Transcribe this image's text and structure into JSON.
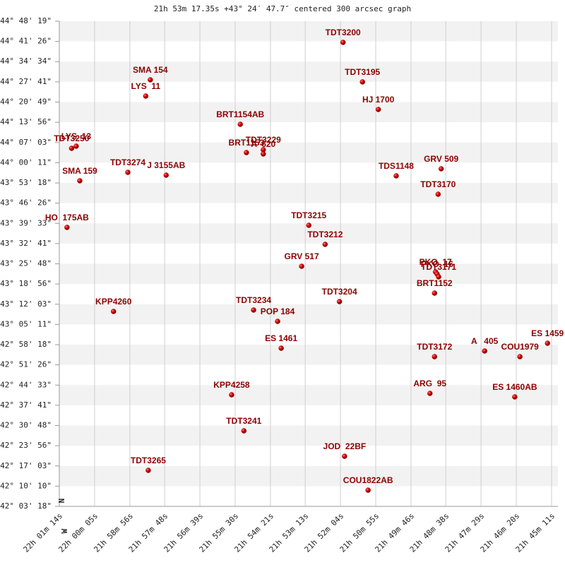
{
  "chart_data": {
    "type": "scatter",
    "title": "21h 53m 17.35s +43° 24′ 47.7″ centered 300 arcsec graph",
    "north_label": "N",
    "west_label": "W",
    "color": "#cc0000",
    "label_color": "#8b0000",
    "grid": true,
    "xlim": [
      79274,
      78311
    ],
    "xticks": [
      {
        "value": 79274,
        "label": "22h 01m 14s"
      },
      {
        "value": 79205,
        "label": "22h 00m 05s"
      },
      {
        "value": 79136,
        "label": "21h 58m 56s"
      },
      {
        "value": 79068,
        "label": "21h 57m 48s"
      },
      {
        "value": 78999,
        "label": "21h 56m 39s"
      },
      {
        "value": 78930,
        "label": "21h 55m 30s"
      },
      {
        "value": 78861,
        "label": "21h 54m 21s"
      },
      {
        "value": 78793,
        "label": "21h 53m 13s"
      },
      {
        "value": 78724,
        "label": "21h 52m 04s"
      },
      {
        "value": 78655,
        "label": "21h 50m 55s"
      },
      {
        "value": 78586,
        "label": "21h 49m 46s"
      },
      {
        "value": 78518,
        "label": "21h 48m 38s"
      },
      {
        "value": 78449,
        "label": "21h 47m 29s"
      },
      {
        "value": 78380,
        "label": "21h 46m 20s"
      },
      {
        "value": 78311,
        "label": "21h 45m 11s"
      }
    ],
    "ylim": [
      151398,
      161299
    ],
    "yticks": [
      {
        "value": 161299,
        "label": "+44° 48' 19\""
      },
      {
        "value": 160886,
        "label": "+44° 41' 26\""
      },
      {
        "value": 160474,
        "label": "+44° 34' 34\""
      },
      {
        "value": 160061,
        "label": "+44° 27' 41\""
      },
      {
        "value": 159649,
        "label": "+44° 20' 49\""
      },
      {
        "value": 159236,
        "label": "+44° 13' 56\""
      },
      {
        "value": 158823,
        "label": "+44° 07' 03\""
      },
      {
        "value": 158411,
        "label": "+44° 00' 11\""
      },
      {
        "value": 157998,
        "label": "+43° 53' 18\""
      },
      {
        "value": 157586,
        "label": "+43° 46' 26\""
      },
      {
        "value": 157173,
        "label": "+43° 39' 33\""
      },
      {
        "value": 156761,
        "label": "+43° 32' 41\""
      },
      {
        "value": 156348,
        "label": "+43° 25' 48\""
      },
      {
        "value": 155936,
        "label": "+43° 18' 56\""
      },
      {
        "value": 155523,
        "label": "+43° 12' 03\""
      },
      {
        "value": 155111,
        "label": "+43° 05' 11\""
      },
      {
        "value": 154698,
        "label": "+42° 58' 18\""
      },
      {
        "value": 154286,
        "label": "+42° 51' 26\""
      },
      {
        "value": 153873,
        "label": "+42° 44' 33\""
      },
      {
        "value": 153461,
        "label": "+42° 37' 41\""
      },
      {
        "value": 153048,
        "label": "+42° 30' 48\""
      },
      {
        "value": 152636,
        "label": "+42° 23' 56\""
      },
      {
        "value": 152223,
        "label": "+42° 17' 03\""
      },
      {
        "value": 151810,
        "label": "+42° 10' 10\""
      },
      {
        "value": 151398,
        "label": "+42° 03' 18\""
      }
    ],
    "point_labels": [
      "TDT3200",
      "SMA 154",
      "TDT3195",
      "LYS  11",
      "HJ 1700",
      "BRT1154AB",
      "LYS  13",
      "TDT3250",
      "BRT1153",
      "TDT3229",
      "A  620",
      "TDT3274",
      "J 3155AB",
      "GRV 509",
      "TDS1148",
      "SMA 159",
      "TDT3170",
      "HO  175AB",
      "TDT3215",
      "TDT3212",
      "GRV 517",
      "PKO  17",
      "PKO  16",
      "TDT3171",
      "BRT1152",
      "TDT3204",
      "KPP4260",
      "TDT3234",
      "POP 184",
      "ES 1461",
      "ES 1459",
      "A   405",
      "COU1979",
      "TDT3172",
      "ARG  95",
      "ES 1460AB",
      "KPP4258",
      "TDT3241",
      "JOD  22BF",
      "TDT3265",
      "COU1822AB"
    ],
    "x": [
      78719,
      79096,
      78681,
      79105,
      78650,
      78920,
      79241,
      79250,
      78908,
      78875,
      78875,
      79140,
      79065,
      78527,
      78615,
      79234,
      78533,
      79259,
      78786,
      78754,
      78800,
      78538,
      78535,
      78532,
      78540,
      78726,
      79168,
      78894,
      78847,
      78840,
      78319,
      78442,
      78373,
      78540,
      78549,
      78383,
      78937,
      78913,
      78716,
      79100,
      78670
    ],
    "values": [
      160867,
      160103,
      160060,
      159771,
      159498,
      159195,
      158748,
      158705,
      158618,
      158676,
      158590,
      158215,
      158157,
      158287,
      158143,
      158042,
      157768,
      157091,
      157134,
      156745,
      156298,
      156183,
      156140,
      156082,
      155750,
      155577,
      155376,
      155405,
      155174,
      154626,
      154727,
      154569,
      154453,
      154453,
      153704,
      153632,
      153675,
      152940,
      152421,
      152133,
      151729
    ]
  }
}
